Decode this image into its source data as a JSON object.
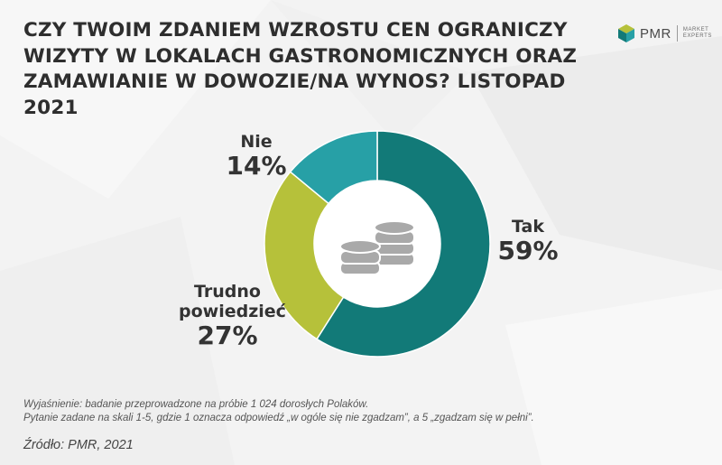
{
  "title_lines": [
    "CZY TWOIM ZDANIEM WZROSTU CEN OGRANICZY",
    "WIZYTY W LOKALACH GASTRONOMICZNYCH ORAZ",
    "ZAMAWIANIE W DOWOZIE/NA WYNOS? LISTOPAD 2021"
  ],
  "logo": {
    "brand": "PMR",
    "tagline_1": "MARKET",
    "tagline_2": "EXPERTS",
    "icon": "cube-logo-icon"
  },
  "chart_data": {
    "type": "pie",
    "donut": true,
    "title": "CZY TWOIM ZDANIEM WZROSTU CEN OGRANICZY WIZYTY W LOKALACH GASTRONOMICZNYCH ORAZ ZAMAWIANIE W DOWOZIE/NA WYNOS? LISTOPAD 2021",
    "categories": [
      "Tak",
      "Trudno powiedzieć",
      "Nie"
    ],
    "values": [
      59,
      27,
      14
    ],
    "value_labels": [
      "59%",
      "27%",
      "14%"
    ],
    "colors": [
      "#127a78",
      "#b6c13a",
      "#27a0a6"
    ],
    "center_icon": "coins-icon"
  },
  "labels": {
    "tak_name": "Tak",
    "tak_pct": "59%",
    "trudno_name_1": "Trudno",
    "trudno_name_2": "powiedzieć",
    "trudno_pct": "27%",
    "nie_name": "Nie",
    "nie_pct": "14%"
  },
  "notes": [
    "Wyjaśnienie: badanie przeprowadzone na próbie 1 024 dorosłych Polaków.",
    "Pytanie zadane na skali 1-5, gdzie 1 oznacza odpowiedź „w ogóle się nie zgadzam”, a 5 „zgadzam się w pełni”."
  ],
  "source": "Źródło: PMR, 2021"
}
